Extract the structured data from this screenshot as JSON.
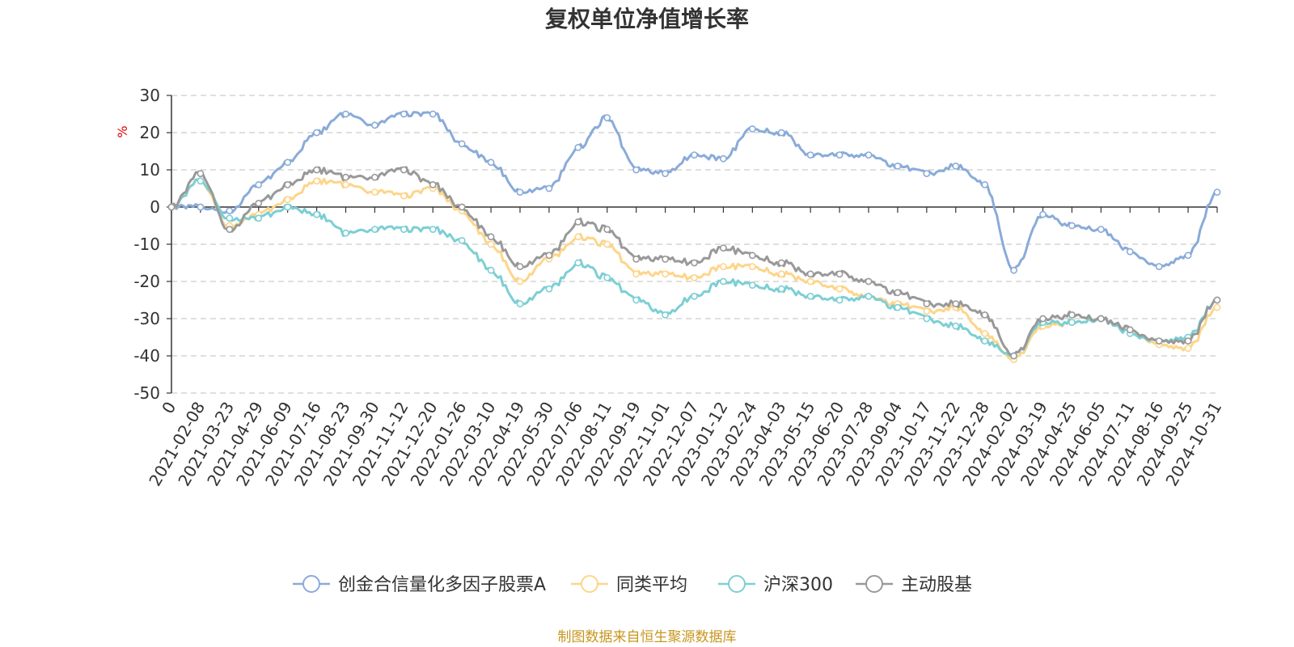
{
  "chart_data": {
    "type": "line",
    "title": "复权单位净值增长率",
    "ylabel": "%",
    "ylim": [
      -50,
      30
    ],
    "yticks": [
      30,
      20,
      10,
      0,
      -10,
      -20,
      -30,
      -40,
      -50
    ],
    "grid": true,
    "legend_position": "bottom",
    "categories": [
      "0",
      "2021-02-08",
      "2021-03-23",
      "2021-04-29",
      "2021-06-09",
      "2021-07-16",
      "2021-08-23",
      "2021-09-30",
      "2021-11-12",
      "2021-12-20",
      "2022-01-26",
      "2022-03-10",
      "2022-04-19",
      "2022-05-30",
      "2022-07-06",
      "2022-08-11",
      "2022-09-19",
      "2022-11-01",
      "2022-12-07",
      "2023-01-12",
      "2023-02-24",
      "2023-04-03",
      "2023-05-15",
      "2023-06-20",
      "2023-07-28",
      "2023-09-04",
      "2023-10-17",
      "2023-11-22",
      "2023-12-28",
      "2024-02-02",
      "2024-03-19",
      "2024-04-25",
      "2024-06-05",
      "2024-07-11",
      "2024-08-16",
      "2024-09-25",
      "2024-10-31"
    ],
    "series": [
      {
        "name": "创金合信量化多因子股票A",
        "color": "#8aabd8",
        "values": [
          0,
          0,
          -1,
          6,
          12,
          20,
          25,
          22,
          25,
          25,
          17,
          12,
          4,
          5,
          16,
          24,
          10,
          9,
          14,
          13,
          21,
          20,
          14,
          14,
          14,
          11,
          9,
          11,
          6,
          -17,
          -2,
          -5,
          -6,
          -12,
          -16,
          -13,
          4
        ]
      },
      {
        "name": "同类平均",
        "color": "#fdd58a",
        "values": [
          0,
          7,
          -5,
          -2,
          2,
          7,
          6,
          4,
          3,
          5,
          -1,
          -10,
          -20,
          -14,
          -8,
          -10,
          -18,
          -18,
          -19,
          -16,
          -16,
          -18,
          -20,
          -22,
          -24,
          -26,
          -28,
          -27,
          -34,
          -41,
          -32,
          -31,
          -30,
          -33,
          -37,
          -38,
          -27
        ]
      },
      {
        "name": "沪深300",
        "color": "#7ccfd4",
        "values": [
          0,
          7,
          -3,
          -3,
          0,
          -2,
          -7,
          -6,
          -6,
          -6,
          -9,
          -17,
          -26,
          -22,
          -15,
          -19,
          -25,
          -29,
          -24,
          -20,
          -21,
          -22,
          -24,
          -25,
          -24,
          -27,
          -30,
          -32,
          -36,
          -40,
          -31,
          -31,
          -30,
          -34,
          -36,
          -35,
          -25
        ]
      },
      {
        "name": "主动股基",
        "color": "#999999",
        "values": [
          0,
          9,
          -6,
          1,
          6,
          10,
          8,
          8,
          10,
          6,
          0,
          -8,
          -16,
          -13,
          -4,
          -6,
          -14,
          -14,
          -15,
          -11,
          -13,
          -15,
          -18,
          -18,
          -20,
          -23,
          -26,
          -26,
          -29,
          -40,
          -30,
          -29,
          -30,
          -33,
          -36,
          -36,
          -25
        ]
      }
    ]
  },
  "source_text": "制图数据来自恒生聚源数据库"
}
